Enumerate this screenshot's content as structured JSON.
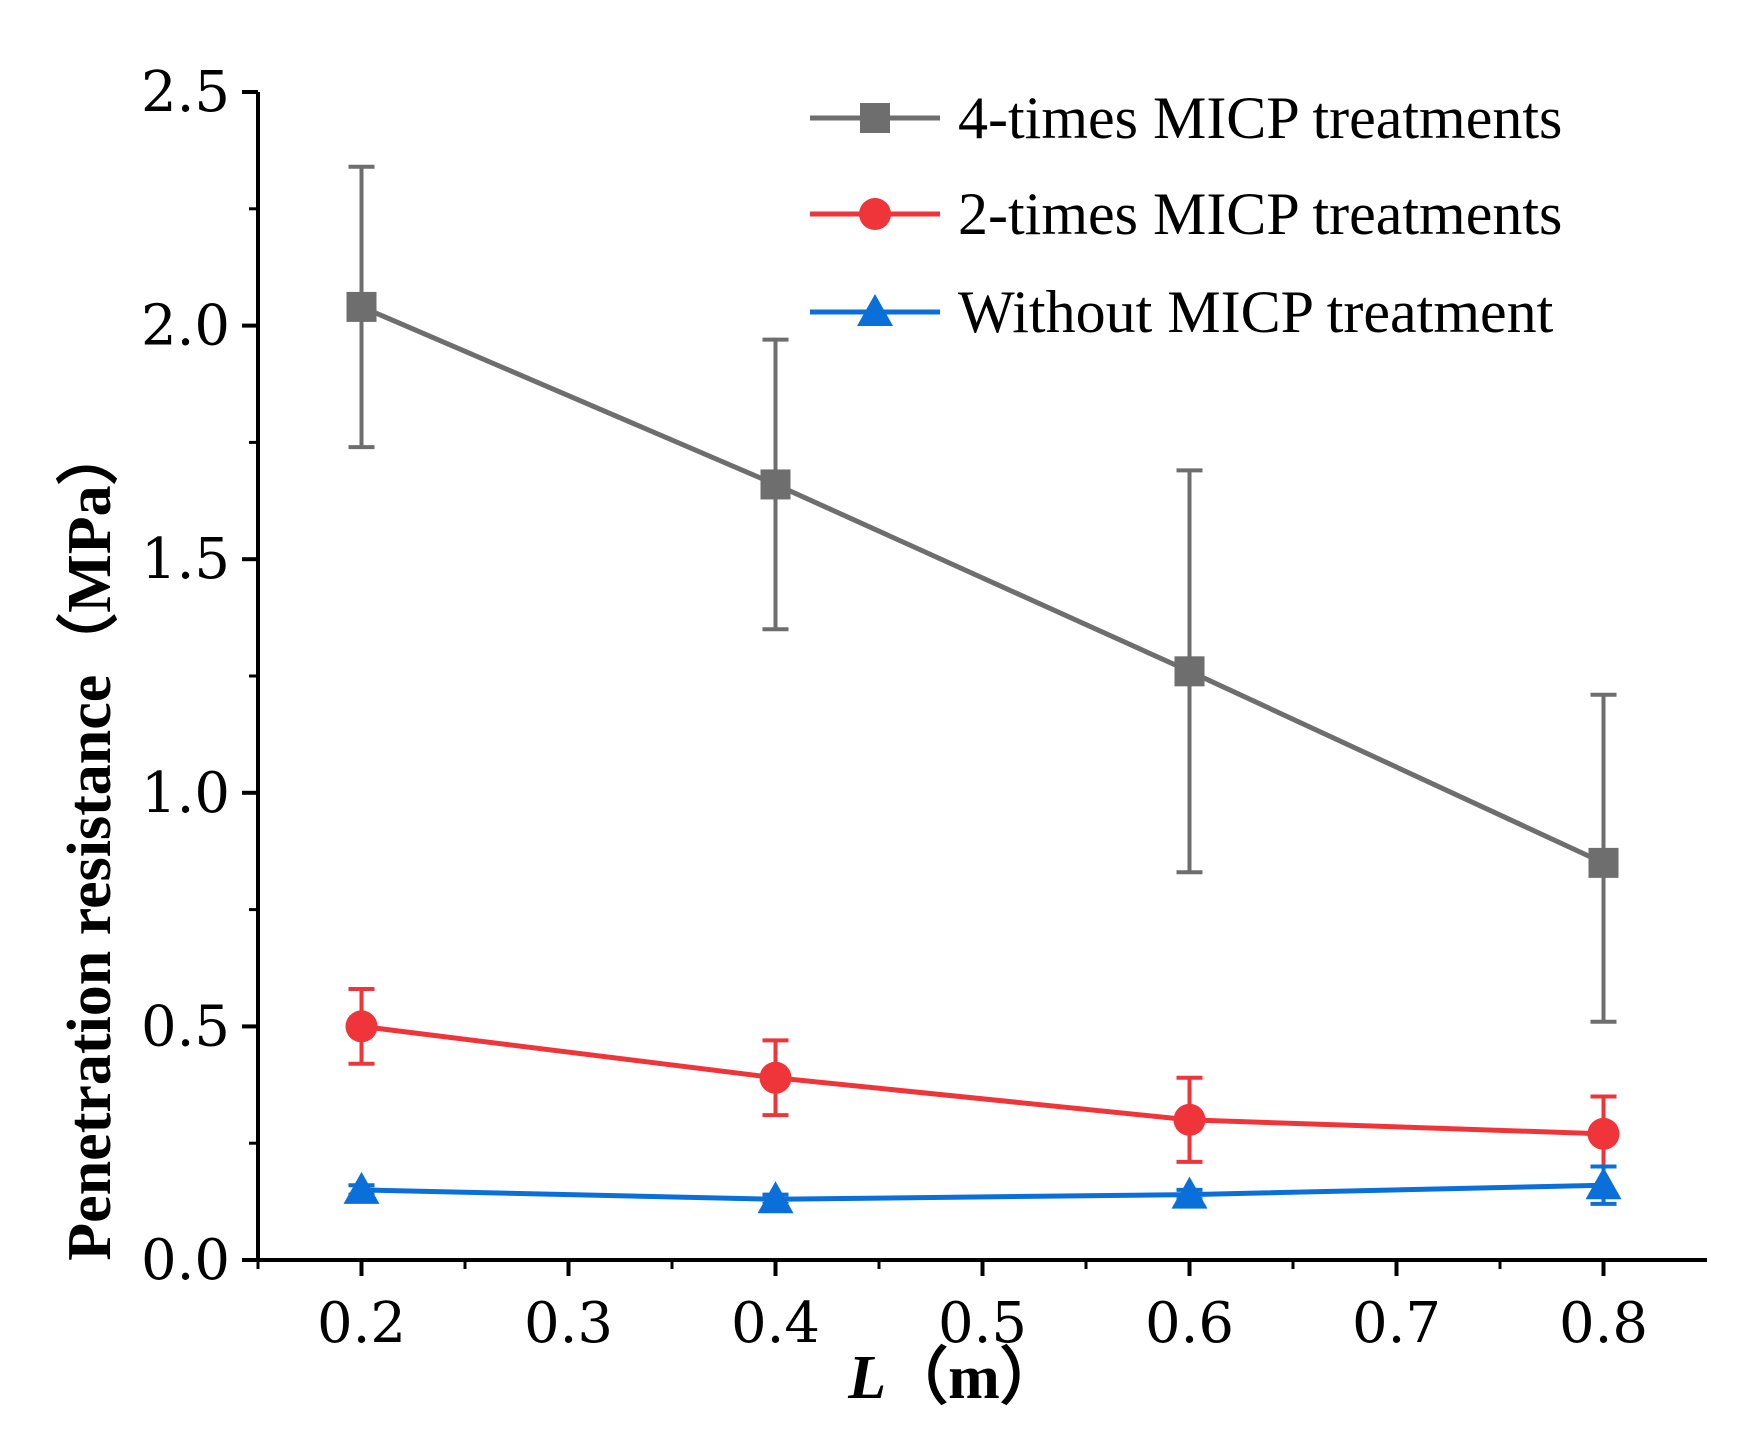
{
  "chart_data": {
    "type": "line",
    "title": "",
    "xlabel": {
      "var": "L",
      "unit": "（m）"
    },
    "ylabel": "Penetration resistance（MPa）",
    "xlim": [
      0.15,
      0.85
    ],
    "ylim": [
      0.0,
      2.5
    ],
    "xticks": [
      "0.2",
      "0.3",
      "0.4",
      "0.5",
      "0.6",
      "0.7",
      "0.8"
    ],
    "yticks": [
      "0.0",
      "0.5",
      "1.0",
      "1.5",
      "2.0",
      "2.5"
    ],
    "grid": false,
    "legend_position": "top-right",
    "x": [
      0.2,
      0.4,
      0.6,
      0.8
    ],
    "series": [
      {
        "name": "4-times MICP treatments",
        "marker": "square",
        "color": "#6e6e6e",
        "values": [
          2.04,
          1.66,
          1.26,
          0.85
        ],
        "err_low": [
          1.74,
          1.35,
          0.83,
          0.51
        ],
        "err_high": [
          2.34,
          1.97,
          1.69,
          1.21
        ]
      },
      {
        "name": "2-times MICP treatments",
        "marker": "circle",
        "color": "#f0353a",
        "values": [
          0.5,
          0.39,
          0.3,
          0.27
        ],
        "err_low": [
          0.42,
          0.31,
          0.21,
          0.2
        ],
        "err_high": [
          0.58,
          0.47,
          0.39,
          0.35
        ]
      },
      {
        "name": "Without MICP treatment",
        "marker": "triangle",
        "color": "#0a6fd8",
        "values": [
          0.15,
          0.13,
          0.14,
          0.16
        ],
        "err_low": [
          0.14,
          0.12,
          0.13,
          0.12
        ],
        "err_high": [
          0.16,
          0.14,
          0.15,
          0.2
        ]
      }
    ]
  }
}
